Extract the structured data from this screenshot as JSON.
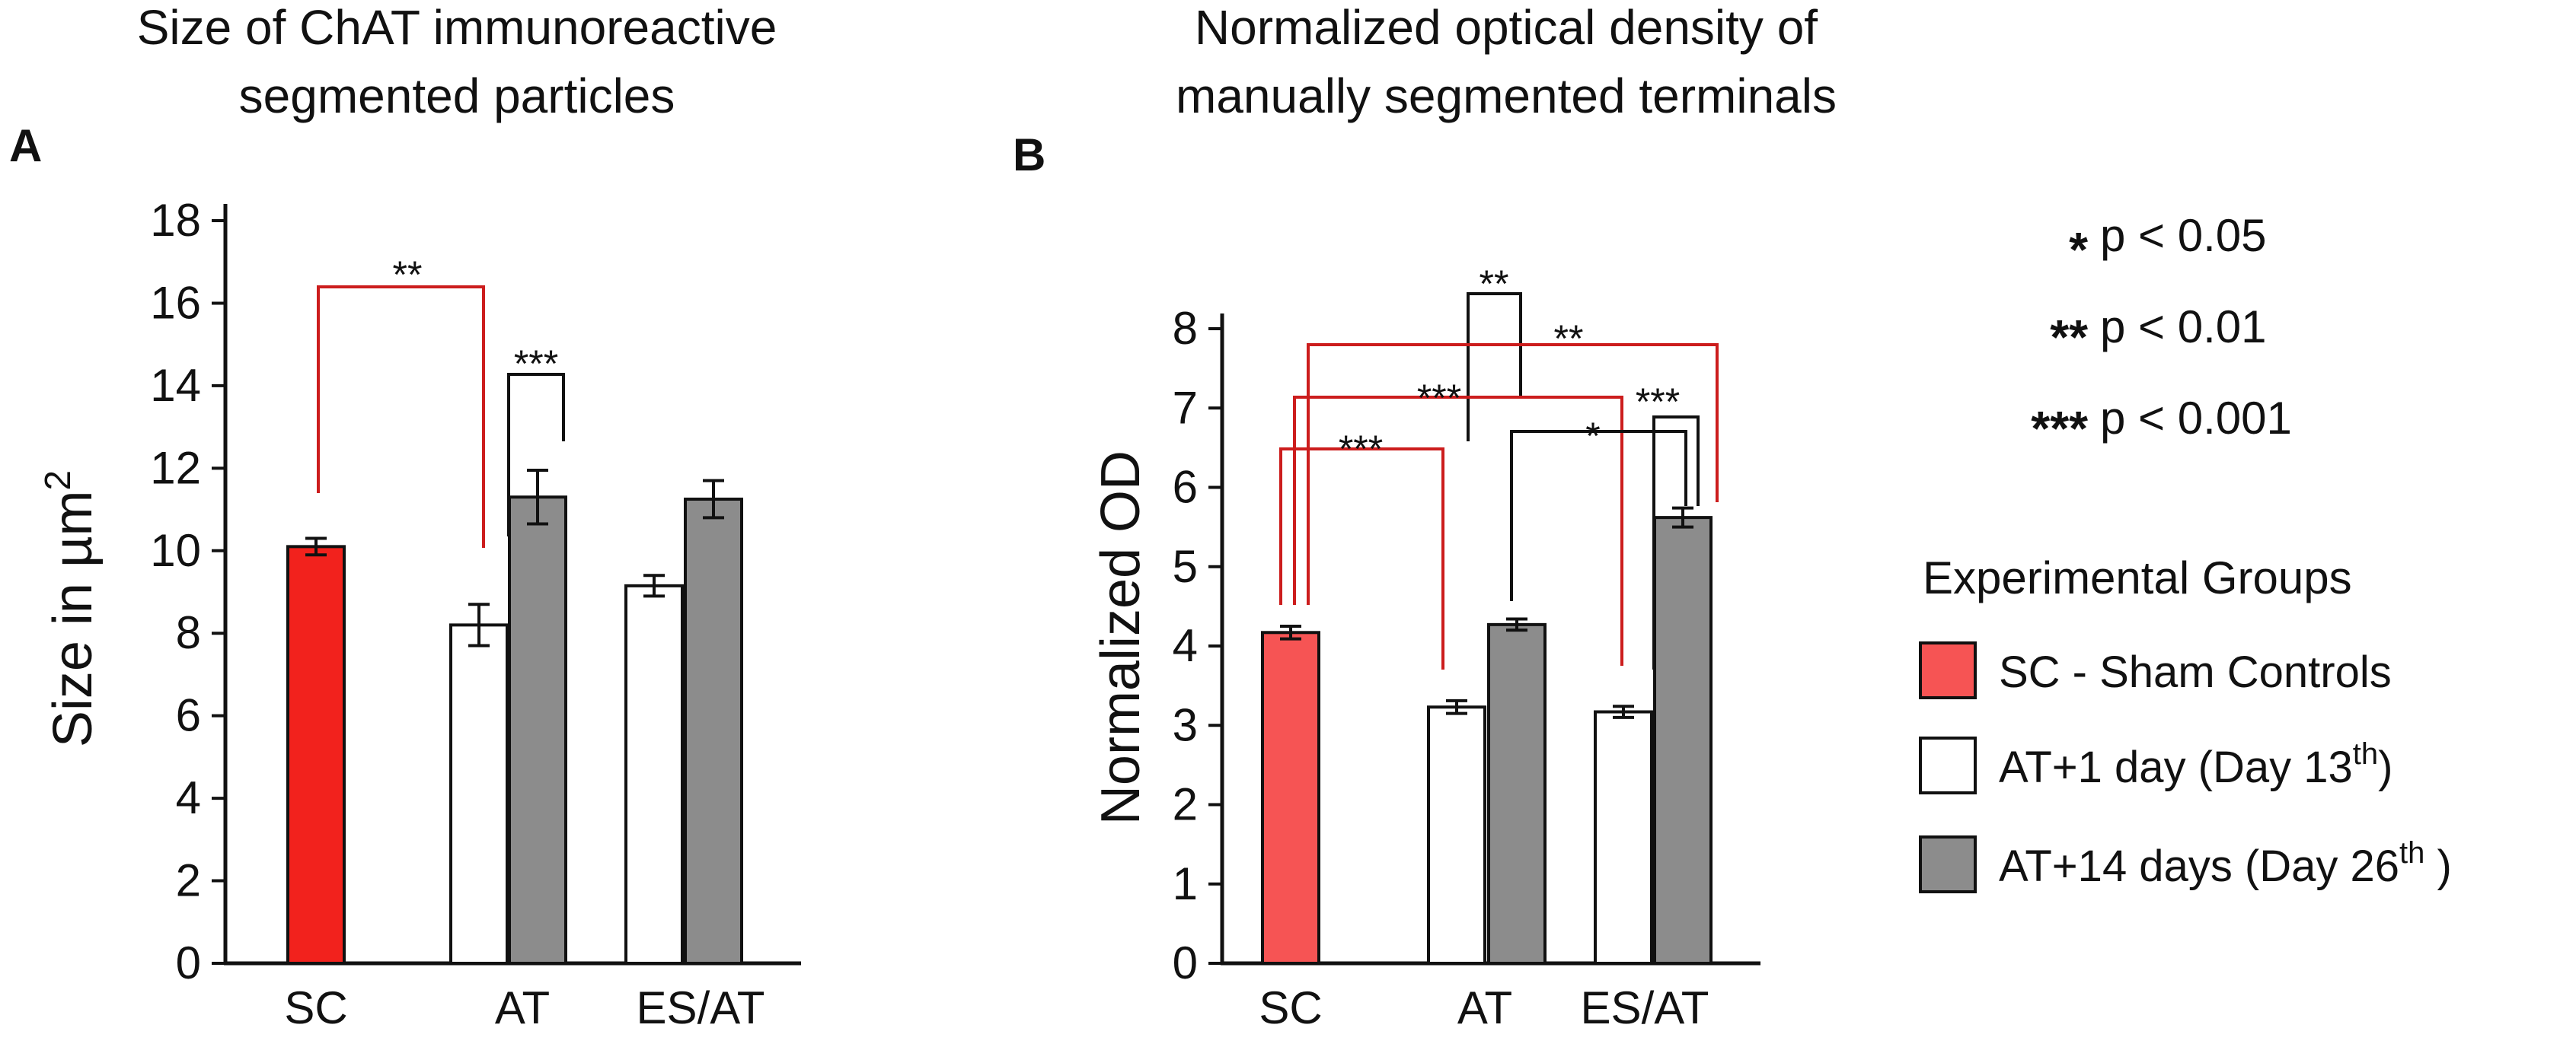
{
  "colors": {
    "sc": "#f2221d",
    "sc_b": "#f65454",
    "at1": "#ffffff",
    "at14": "#8c8c8c",
    "red_bracket": "#cc1d1d",
    "black": "#111111"
  },
  "chart_data": [
    {
      "id": "A",
      "type": "bar",
      "panel_label": "A",
      "title_lines": [
        "Size of ChAT immunoreactive",
        "segmented particles"
      ],
      "ylabel": "Size in µm",
      "ylabel_sup": "2",
      "xlabel": "",
      "ylim": [
        0,
        18
      ],
      "yticks": [
        0,
        2,
        4,
        6,
        8,
        10,
        12,
        14,
        16,
        18
      ],
      "groups": [
        "SC",
        "AT",
        "ES/AT"
      ],
      "bars": [
        {
          "name": "SC",
          "group": 0,
          "series": "SC - Sham Controls",
          "value": 10.1,
          "err": 0.2
        },
        {
          "name": "AT-1day",
          "group": 1,
          "series": "AT+1 day",
          "value": 8.2,
          "err": 0.5
        },
        {
          "name": "AT-14days",
          "group": 1,
          "series": "AT+14 days",
          "value": 11.3,
          "err": 0.65
        },
        {
          "name": "ESAT-1day",
          "group": 2,
          "series": "AT+1 day",
          "value": 9.15,
          "err": 0.25
        },
        {
          "name": "ESAT-14days",
          "group": 2,
          "series": "AT+14 days",
          "value": 11.25,
          "err": 0.45
        }
      ],
      "significance": [
        {
          "from": "SC",
          "to": "AT-1day",
          "label": "**",
          "color": "red"
        },
        {
          "from": "AT-1day",
          "to": "AT-14days",
          "label": "***",
          "color": "black"
        }
      ]
    },
    {
      "id": "B",
      "type": "bar",
      "panel_label": "B",
      "title_lines": [
        "Normalized optical density of",
        "manually segmented terminals"
      ],
      "ylabel": "Normalized OD",
      "xlabel": "",
      "ylim": [
        0,
        8
      ],
      "yticks": [
        0,
        1,
        2,
        3,
        4,
        5,
        6,
        7,
        8
      ],
      "groups": [
        "SC",
        "AT",
        "ES/AT"
      ],
      "bars": [
        {
          "name": "SC",
          "group": 0,
          "series": "SC - Sham Controls",
          "value": 4.17,
          "err": 0.08
        },
        {
          "name": "AT-1day",
          "group": 1,
          "series": "AT+1 day",
          "value": 3.23,
          "err": 0.08
        },
        {
          "name": "AT-14days",
          "group": 1,
          "series": "AT+14 days",
          "value": 4.27,
          "err": 0.07
        },
        {
          "name": "ESAT-1day",
          "group": 2,
          "series": "AT+1 day",
          "value": 3.17,
          "err": 0.07
        },
        {
          "name": "ESAT-14days",
          "group": 2,
          "series": "AT+14 days",
          "value": 5.62,
          "err": 0.12
        }
      ],
      "significance": [
        {
          "from": "AT-1day",
          "to": "AT-14days",
          "label": "**",
          "color": "black"
        },
        {
          "from": "SC",
          "to": "ESAT-14days",
          "label": "**",
          "color": "red"
        },
        {
          "from": "SC",
          "to": "ESAT-1day",
          "label": "***",
          "color": "red"
        },
        {
          "from": "ESAT-1day",
          "to": "ESAT-14days",
          "label": "***",
          "color": "black"
        },
        {
          "from": "AT-14days",
          "to": "ESAT-14days",
          "label": "*",
          "color": "black"
        },
        {
          "from": "SC",
          "to": "AT-1day",
          "label": "***",
          "color": "red"
        }
      ]
    }
  ],
  "pvalue_legend": [
    {
      "stars": "*",
      "text": "p < 0.05"
    },
    {
      "stars": "**",
      "text": "p < 0.01"
    },
    {
      "stars": "***",
      "text": "p < 0.001"
    }
  ],
  "legend": {
    "title": "Experimental Groups",
    "items": [
      {
        "label": "SC - Sham Controls",
        "sup": "",
        "tail": ""
      },
      {
        "label": "AT+1 day (Day 13",
        "sup": "th",
        "tail": ")"
      },
      {
        "label": "AT+14 days (Day 26",
        "sup": "th",
        "tail": " )"
      }
    ]
  }
}
